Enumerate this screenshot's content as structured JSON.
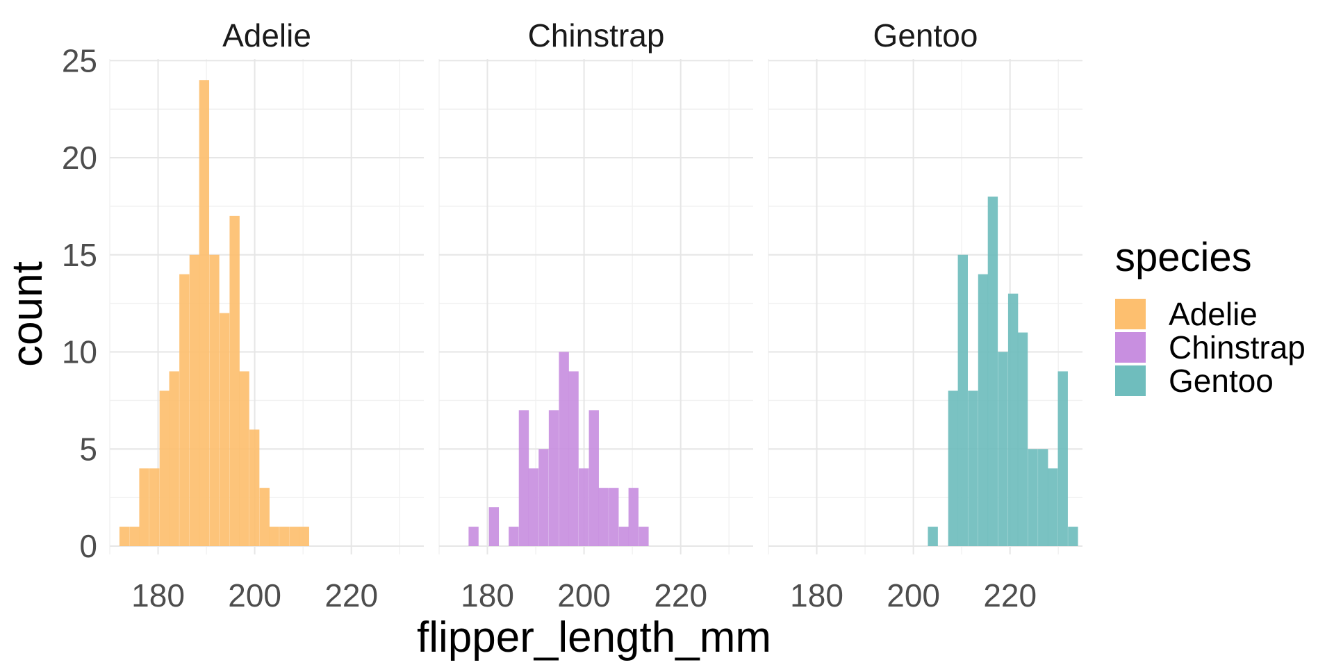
{
  "chart_data": {
    "type": "bar",
    "subtype": "faceted-histogram",
    "xlabel": "flipper_length_mm",
    "ylabel": "count",
    "ylim": [
      0,
      25
    ],
    "yticks": [
      0,
      5,
      10,
      15,
      20,
      25
    ],
    "xlim": [
      170,
      235
    ],
    "xticks": [
      180,
      200,
      220
    ],
    "bin_width": 2.07,
    "grid": true,
    "legend": {
      "title": "species",
      "placement": "right"
    },
    "facets": [
      {
        "name": "Adelie",
        "color": "#FDBF6F",
        "bins": [
          {
            "x0": 172.0,
            "count": 1
          },
          {
            "x0": 174.1,
            "count": 1
          },
          {
            "x0": 176.1,
            "count": 4
          },
          {
            "x0": 178.2,
            "count": 4
          },
          {
            "x0": 180.3,
            "count": 8
          },
          {
            "x0": 182.3,
            "count": 9
          },
          {
            "x0": 184.4,
            "count": 14
          },
          {
            "x0": 186.5,
            "count": 15
          },
          {
            "x0": 188.5,
            "count": 24
          },
          {
            "x0": 190.6,
            "count": 15
          },
          {
            "x0": 192.7,
            "count": 12
          },
          {
            "x0": 194.8,
            "count": 17
          },
          {
            "x0": 196.8,
            "count": 9
          },
          {
            "x0": 198.9,
            "count": 6
          },
          {
            "x0": 201.0,
            "count": 3
          },
          {
            "x0": 203.0,
            "count": 1
          },
          {
            "x0": 205.1,
            "count": 1
          },
          {
            "x0": 207.2,
            "count": 1
          },
          {
            "x0": 209.2,
            "count": 1
          }
        ]
      },
      {
        "name": "Chinstrap",
        "color": "#C88FE0",
        "bins": [
          {
            "x0": 176.1,
            "count": 1
          },
          {
            "x0": 180.3,
            "count": 2
          },
          {
            "x0": 184.4,
            "count": 1
          },
          {
            "x0": 186.5,
            "count": 7
          },
          {
            "x0": 188.5,
            "count": 4
          },
          {
            "x0": 190.6,
            "count": 5
          },
          {
            "x0": 192.7,
            "count": 7
          },
          {
            "x0": 194.8,
            "count": 10
          },
          {
            "x0": 196.8,
            "count": 9
          },
          {
            "x0": 198.9,
            "count": 4
          },
          {
            "x0": 201.0,
            "count": 7
          },
          {
            "x0": 203.0,
            "count": 3
          },
          {
            "x0": 205.1,
            "count": 3
          },
          {
            "x0": 207.2,
            "count": 1
          },
          {
            "x0": 209.2,
            "count": 3
          },
          {
            "x0": 211.3,
            "count": 1
          }
        ]
      },
      {
        "name": "Gentoo",
        "color": "#6FBDBD",
        "bins": [
          {
            "x0": 203.0,
            "count": 1
          },
          {
            "x0": 207.2,
            "count": 8
          },
          {
            "x0": 209.2,
            "count": 15
          },
          {
            "x0": 211.3,
            "count": 8
          },
          {
            "x0": 213.4,
            "count": 14
          },
          {
            "x0": 215.4,
            "count": 18
          },
          {
            "x0": 217.5,
            "count": 10
          },
          {
            "x0": 219.6,
            "count": 13
          },
          {
            "x0": 221.6,
            "count": 11
          },
          {
            "x0": 223.7,
            "count": 5
          },
          {
            "x0": 225.8,
            "count": 5
          },
          {
            "x0": 227.8,
            "count": 4
          },
          {
            "x0": 229.9,
            "count": 9
          },
          {
            "x0": 232.0,
            "count": 1
          }
        ]
      }
    ]
  }
}
